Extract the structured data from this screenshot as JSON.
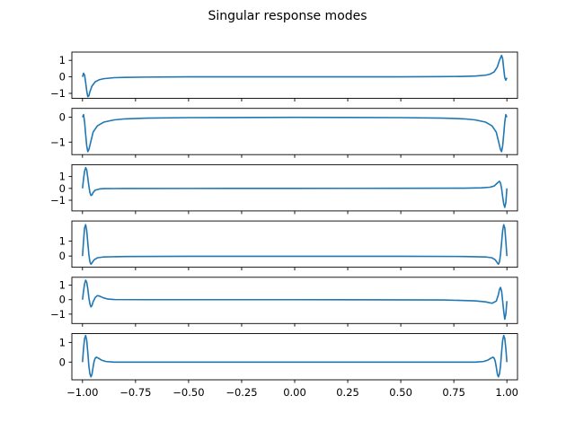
{
  "chart_data": {
    "type": "line",
    "title": "Singular response modes",
    "line_color": "#1f77b4",
    "xlim": [
      -1.05,
      1.05
    ],
    "xticks": [
      -1.0,
      -0.75,
      -0.5,
      -0.25,
      0.0,
      0.25,
      0.5,
      0.75,
      1.0
    ],
    "xtick_labels": [
      "−1.00",
      "−0.75",
      "−0.50",
      "−0.25",
      "0.00",
      "0.25",
      "0.50",
      "0.75",
      "1.00"
    ],
    "subplots": [
      {
        "ylim": [
          -1.3,
          1.5
        ],
        "yticks": [
          -1,
          0,
          1
        ],
        "ytick_labels": [
          "−1",
          "0",
          "1"
        ],
        "points": [
          [
            -1.0,
            0.0
          ],
          [
            -0.995,
            0.22
          ],
          [
            -0.99,
            0.1
          ],
          [
            -0.985,
            -0.35
          ],
          [
            -0.98,
            -0.85
          ],
          [
            -0.975,
            -1.2
          ],
          [
            -0.97,
            -1.15
          ],
          [
            -0.965,
            -0.9
          ],
          [
            -0.955,
            -0.55
          ],
          [
            -0.94,
            -0.3
          ],
          [
            -0.92,
            -0.17
          ],
          [
            -0.9,
            -0.11
          ],
          [
            -0.85,
            -0.05
          ],
          [
            -0.8,
            -0.03
          ],
          [
            -0.7,
            -0.015
          ],
          [
            -0.5,
            0.0
          ],
          [
            0.0,
            0.0
          ],
          [
            0.5,
            0.0
          ],
          [
            0.7,
            0.015
          ],
          [
            0.8,
            0.03
          ],
          [
            0.85,
            0.05
          ],
          [
            0.9,
            0.1
          ],
          [
            0.92,
            0.16
          ],
          [
            0.94,
            0.3
          ],
          [
            0.955,
            0.6
          ],
          [
            0.965,
            1.0
          ],
          [
            0.975,
            1.3
          ],
          [
            0.98,
            1.1
          ],
          [
            0.985,
            0.5
          ],
          [
            0.99,
            -0.05
          ],
          [
            0.995,
            -0.2
          ],
          [
            1.0,
            -0.05
          ]
        ]
      },
      {
        "ylim": [
          -1.5,
          0.35
        ],
        "yticks": [
          -1,
          0
        ],
        "ytick_labels": [
          "−1",
          "0"
        ],
        "points": [
          [
            -1.0,
            0.0
          ],
          [
            -0.995,
            0.1
          ],
          [
            -0.99,
            -0.2
          ],
          [
            -0.985,
            -0.7
          ],
          [
            -0.98,
            -1.15
          ],
          [
            -0.975,
            -1.38
          ],
          [
            -0.97,
            -1.3
          ],
          [
            -0.96,
            -0.95
          ],
          [
            -0.95,
            -0.6
          ],
          [
            -0.93,
            -0.35
          ],
          [
            -0.9,
            -0.2
          ],
          [
            -0.85,
            -0.11
          ],
          [
            -0.8,
            -0.07
          ],
          [
            -0.7,
            -0.04
          ],
          [
            -0.5,
            -0.02
          ],
          [
            0.0,
            -0.01
          ],
          [
            0.5,
            -0.02
          ],
          [
            0.7,
            -0.04
          ],
          [
            0.8,
            -0.07
          ],
          [
            0.85,
            -0.11
          ],
          [
            0.9,
            -0.2
          ],
          [
            0.93,
            -0.35
          ],
          [
            0.95,
            -0.6
          ],
          [
            0.96,
            -0.95
          ],
          [
            0.97,
            -1.3
          ],
          [
            0.975,
            -1.38
          ],
          [
            0.98,
            -1.15
          ],
          [
            0.985,
            -0.7
          ],
          [
            0.99,
            -0.2
          ],
          [
            0.995,
            0.1
          ],
          [
            1.0,
            0.0
          ]
        ]
      },
      {
        "ylim": [
          -1.9,
          2.0
        ],
        "yticks": [
          -1,
          0,
          1
        ],
        "ytick_labels": [
          "−1",
          "0",
          "1"
        ],
        "points": [
          [
            -1.0,
            0.0
          ],
          [
            -0.995,
            0.8
          ],
          [
            -0.99,
            1.45
          ],
          [
            -0.985,
            1.75
          ],
          [
            -0.98,
            1.55
          ],
          [
            -0.975,
            0.9
          ],
          [
            -0.97,
            0.2
          ],
          [
            -0.965,
            -0.35
          ],
          [
            -0.96,
            -0.6
          ],
          [
            -0.955,
            -0.55
          ],
          [
            -0.95,
            -0.35
          ],
          [
            -0.94,
            -0.15
          ],
          [
            -0.92,
            -0.05
          ],
          [
            -0.9,
            -0.02
          ],
          [
            -0.8,
            -0.01
          ],
          [
            -0.5,
            -0.005
          ],
          [
            0.0,
            0.0
          ],
          [
            0.5,
            0.01
          ],
          [
            0.8,
            0.02
          ],
          [
            0.88,
            0.05
          ],
          [
            0.92,
            0.1
          ],
          [
            0.94,
            0.2
          ],
          [
            0.955,
            0.45
          ],
          [
            0.965,
            0.6
          ],
          [
            0.97,
            0.45
          ],
          [
            0.975,
            0.0
          ],
          [
            0.98,
            -0.7
          ],
          [
            0.985,
            -1.3
          ],
          [
            0.99,
            -1.6
          ],
          [
            0.995,
            -1.2
          ],
          [
            1.0,
            0.0
          ]
        ]
      },
      {
        "ylim": [
          -0.75,
          2.35
        ],
        "yticks": [
          0,
          1
        ],
        "ytick_labels": [
          "0",
          "1"
        ],
        "points": [
          [
            -1.0,
            0.0
          ],
          [
            -0.995,
            1.0
          ],
          [
            -0.99,
            1.9
          ],
          [
            -0.985,
            2.1
          ],
          [
            -0.98,
            1.7
          ],
          [
            -0.975,
            0.9
          ],
          [
            -0.97,
            0.1
          ],
          [
            -0.965,
            -0.4
          ],
          [
            -0.96,
            -0.55
          ],
          [
            -0.955,
            -0.45
          ],
          [
            -0.945,
            -0.25
          ],
          [
            -0.93,
            -0.12
          ],
          [
            -0.9,
            -0.06
          ],
          [
            -0.8,
            -0.03
          ],
          [
            -0.5,
            -0.02
          ],
          [
            0.0,
            -0.02
          ],
          [
            0.5,
            -0.02
          ],
          [
            0.8,
            -0.03
          ],
          [
            0.9,
            -0.06
          ],
          [
            0.93,
            -0.12
          ],
          [
            0.945,
            -0.25
          ],
          [
            0.955,
            -0.45
          ],
          [
            0.96,
            -0.55
          ],
          [
            0.965,
            -0.4
          ],
          [
            0.97,
            0.1
          ],
          [
            0.975,
            0.9
          ],
          [
            0.98,
            1.7
          ],
          [
            0.985,
            2.1
          ],
          [
            0.99,
            1.9
          ],
          [
            0.995,
            1.0
          ],
          [
            1.0,
            0.0
          ]
        ]
      },
      {
        "ylim": [
          -1.65,
          1.55
        ],
        "yticks": [
          -1,
          0,
          1
        ],
        "ytick_labels": [
          "−1",
          "0",
          "1"
        ],
        "points": [
          [
            -1.0,
            0.0
          ],
          [
            -0.995,
            0.6
          ],
          [
            -0.99,
            1.1
          ],
          [
            -0.985,
            1.35
          ],
          [
            -0.98,
            1.2
          ],
          [
            -0.975,
            0.75
          ],
          [
            -0.97,
            0.15
          ],
          [
            -0.965,
            -0.3
          ],
          [
            -0.96,
            -0.5
          ],
          [
            -0.955,
            -0.4
          ],
          [
            -0.95,
            -0.15
          ],
          [
            -0.94,
            0.15
          ],
          [
            -0.93,
            0.28
          ],
          [
            -0.92,
            0.25
          ],
          [
            -0.9,
            0.12
          ],
          [
            -0.88,
            0.04
          ],
          [
            -0.85,
            0.01
          ],
          [
            -0.7,
            0.0
          ],
          [
            0.0,
            0.0
          ],
          [
            0.7,
            -0.02
          ],
          [
            0.85,
            -0.08
          ],
          [
            0.9,
            -0.15
          ],
          [
            0.93,
            -0.25
          ],
          [
            0.95,
            -0.1
          ],
          [
            0.96,
            0.35
          ],
          [
            0.965,
            0.7
          ],
          [
            0.97,
            0.85
          ],
          [
            0.975,
            0.6
          ],
          [
            0.98,
            -0.1
          ],
          [
            0.985,
            -0.8
          ],
          [
            0.99,
            -1.35
          ],
          [
            0.995,
            -1.0
          ],
          [
            1.0,
            -0.1
          ]
        ]
      },
      {
        "ylim": [
          -0.9,
          1.45
        ],
        "yticks": [
          0,
          1
        ],
        "ytick_labels": [
          "0",
          "1"
        ],
        "points": [
          [
            -1.0,
            0.0
          ],
          [
            -0.995,
            0.7
          ],
          [
            -0.99,
            1.2
          ],
          [
            -0.985,
            1.35
          ],
          [
            -0.98,
            1.1
          ],
          [
            -0.975,
            0.5
          ],
          [
            -0.97,
            -0.2
          ],
          [
            -0.965,
            -0.6
          ],
          [
            -0.96,
            -0.75
          ],
          [
            -0.955,
            -0.6
          ],
          [
            -0.95,
            -0.25
          ],
          [
            -0.945,
            0.05
          ],
          [
            -0.94,
            0.2
          ],
          [
            -0.935,
            0.25
          ],
          [
            -0.925,
            0.2
          ],
          [
            -0.91,
            0.1
          ],
          [
            -0.89,
            0.03
          ],
          [
            -0.85,
            0.0
          ],
          [
            0.0,
            0.0
          ],
          [
            0.85,
            0.0
          ],
          [
            0.89,
            0.03
          ],
          [
            0.91,
            0.1
          ],
          [
            0.925,
            0.2
          ],
          [
            0.935,
            0.25
          ],
          [
            0.94,
            0.2
          ],
          [
            0.945,
            0.05
          ],
          [
            0.95,
            -0.25
          ],
          [
            0.955,
            -0.6
          ],
          [
            0.96,
            -0.75
          ],
          [
            0.965,
            -0.6
          ],
          [
            0.97,
            -0.2
          ],
          [
            0.975,
            0.5
          ],
          [
            0.98,
            1.1
          ],
          [
            0.985,
            1.35
          ],
          [
            0.99,
            1.2
          ],
          [
            0.995,
            0.7
          ],
          [
            1.0,
            0.0
          ]
        ]
      }
    ]
  }
}
